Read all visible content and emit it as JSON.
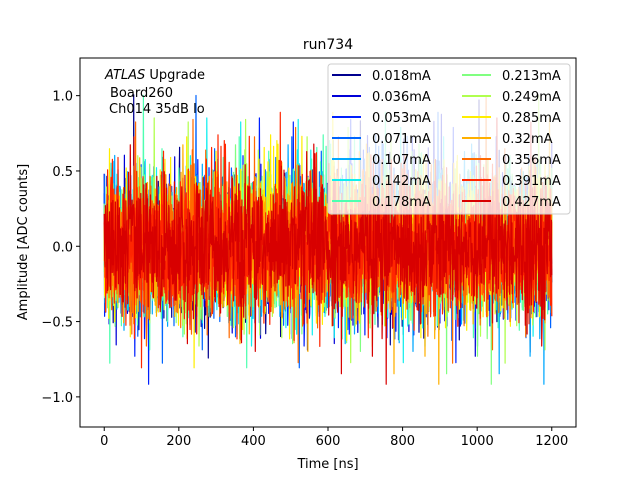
{
  "chart_data": {
    "type": "line",
    "title": "run734",
    "xlabel": "Time [ns]",
    "ylabel": "Amplitude [ADC counts]",
    "xlim": [
      -65,
      1265
    ],
    "ylim": [
      -1.2,
      1.25
    ],
    "xticks": [
      0,
      200,
      400,
      600,
      800,
      1000,
      1200
    ],
    "xtick_labels": [
      "0",
      "200",
      "400",
      "600",
      "800",
      "1000",
      "1200"
    ],
    "yticks": [
      -1.0,
      -0.5,
      0.0,
      0.5,
      1.0
    ],
    "ytick_labels": [
      "−1.0",
      "−0.5",
      "0.0",
      "0.5",
      "1.0"
    ],
    "grid": false,
    "legend_position": "top-right",
    "legend_columns": 2,
    "annotation": {
      "experiment": "ATLAS",
      "experiment_suffix": " Upgrade",
      "line2": "Board260",
      "line3": "Ch014 35dB lo"
    },
    "signal": {
      "x_range": [
        0,
        1200
      ],
      "noise_std": 0.22,
      "description_values_min": -1.08,
      "description_values_max": 1.12
    },
    "series": [
      {
        "name": "0.018mA",
        "color": "#00008f"
      },
      {
        "name": "0.036mA",
        "color": "#0000d8"
      },
      {
        "name": "0.053mA",
        "color": "#0020ff"
      },
      {
        "name": "0.071mA",
        "color": "#0064ff"
      },
      {
        "name": "0.107mA",
        "color": "#00a8ff"
      },
      {
        "name": "0.142mA",
        "color": "#10eeee"
      },
      {
        "name": "0.178mA",
        "color": "#4effb0"
      },
      {
        "name": "0.213mA",
        "color": "#80ff80"
      },
      {
        "name": "0.249mA",
        "color": "#b0ff4e"
      },
      {
        "name": "0.285mA",
        "color": "#ffee00"
      },
      {
        "name": "0.32mA",
        "color": "#ffb000"
      },
      {
        "name": "0.356mA",
        "color": "#ff6a00"
      },
      {
        "name": "0.391mA",
        "color": "#ff2600"
      },
      {
        "name": "0.427mA",
        "color": "#d80000"
      }
    ]
  }
}
